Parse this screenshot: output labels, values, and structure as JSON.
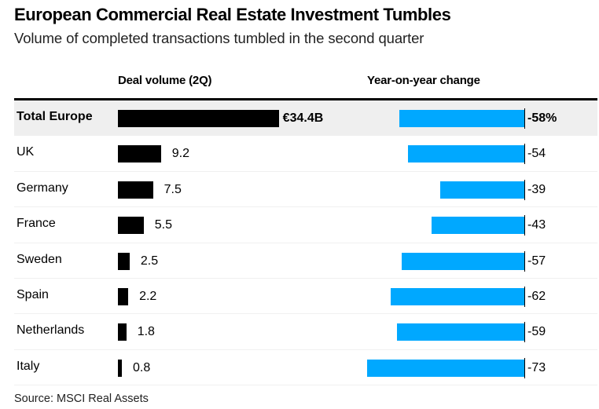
{
  "title": "European Commercial Real Estate Investment Tumbles",
  "subtitle": "Volume of completed transactions tumbled in the second quarter",
  "source": "Source: MSCI Real Assets",
  "colors": {
    "volume_bar": "#000000",
    "change_bar": "#00a8ff",
    "highlight_row": "#efefef"
  },
  "chart_data": {
    "type": "table",
    "title": "European Commercial Real Estate Investment Tumbles",
    "subtitle": "Volume of completed transactions tumbled in the second quarter",
    "columns": [
      "Deal volume (2Q)",
      "Year-on-year change"
    ],
    "categories": [
      "Total Europe",
      "UK",
      "Germany",
      "France",
      "Sweden",
      "Spain",
      "Netherlands",
      "Italy"
    ],
    "series": [
      {
        "name": "Deal volume (2Q)",
        "unit": "€B",
        "type": "bar",
        "values": [
          34.4,
          9.2,
          7.5,
          5.5,
          2.5,
          2.2,
          1.8,
          0.8
        ],
        "labels": [
          "€34.4B",
          "9.2",
          "7.5",
          "5.5",
          "2.5",
          "2.2",
          "1.8",
          "0.8"
        ]
      },
      {
        "name": "Year-on-year change",
        "unit": "%",
        "type": "bar",
        "values": [
          -58,
          -54,
          -39,
          -43,
          -57,
          -62,
          -59,
          -73
        ],
        "labels": [
          "-58%",
          "-54",
          "-39",
          "-43",
          "-57",
          "-62",
          "-59",
          "-73"
        ]
      }
    ],
    "highlight_row": "Total Europe",
    "source": "Source: MSCI Real Assets"
  }
}
